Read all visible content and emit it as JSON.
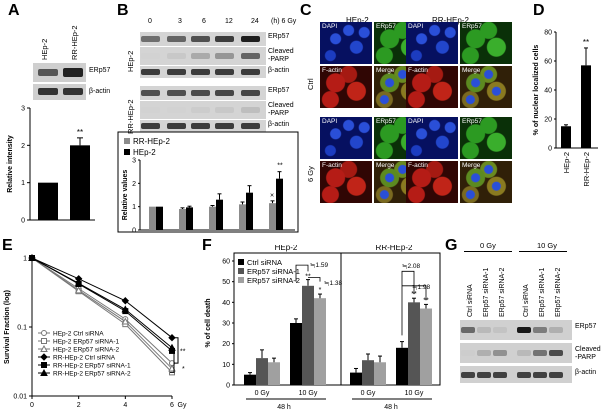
{
  "panels": {
    "A": "A",
    "B": "B",
    "C": "C",
    "D": "D",
    "E": "E",
    "F": "F",
    "G": "G"
  },
  "A": {
    "lanes": [
      "HEp-2",
      "RR-HEp-2"
    ],
    "blot_labels": [
      "ERp57",
      "β-actin"
    ],
    "chart_data": {
      "type": "bar",
      "categories": [
        "HEp-2",
        "RR-HEp-2"
      ],
      "values": [
        1.0,
        2.0
      ],
      "errors": [
        0,
        0.2
      ],
      "ylabel": "Relative intensity",
      "ylim": [
        0,
        3
      ],
      "yticks": [
        0,
        1,
        2,
        3
      ],
      "significance": [
        "",
        "**"
      ]
    }
  },
  "B": {
    "timepoints": [
      "0",
      "3",
      "6",
      "12",
      "24"
    ],
    "time_unit": "(h) 6 Gy",
    "cell_labels": [
      "HEp-2",
      "RR-HEp-2"
    ],
    "blot_labels": [
      "ERp57",
      "Cleaved\n-PARP",
      "β-actin",
      "ERp57",
      "Cleaved\n-PARP",
      "β-actin"
    ],
    "chart_data": {
      "type": "bar",
      "categories": [
        "0",
        "3",
        "6",
        "12",
        "24"
      ],
      "series": [
        {
          "name": "RR-HEp-2",
          "values": [
            1.0,
            0.9,
            1.0,
            1.1,
            1.15
          ],
          "errors": [
            0,
            0.05,
            0.05,
            0.1,
            0.1
          ]
        },
        {
          "name": "HEp-2",
          "values": [
            1.0,
            0.97,
            1.3,
            1.6,
            2.2
          ],
          "errors": [
            0,
            0.05,
            0.25,
            0.3,
            0.3
          ]
        }
      ],
      "ylabel": "Relative values",
      "ylim": [
        0,
        3
      ],
      "yticks": [
        0,
        1,
        2,
        3
      ],
      "annotations": [
        "×",
        "**"
      ]
    }
  },
  "C": {
    "col_labels": [
      "HEp-2",
      "RR-HEp-2"
    ],
    "row_labels": [
      "Ctrl",
      "6 Gy"
    ],
    "channels": [
      "DAPI",
      "ERp57",
      "F-actin",
      "Merge"
    ]
  },
  "D": {
    "chart_data": {
      "type": "bar",
      "categories": [
        "HEp-2",
        "RR-HEp-2"
      ],
      "values": [
        15,
        57
      ],
      "errors": [
        1,
        12
      ],
      "ylabel": "% of nuclear localized cells",
      "ylim": [
        0,
        80
      ],
      "yticks": [
        0,
        20,
        40,
        60,
        80
      ],
      "significance": [
        "",
        "**"
      ]
    }
  },
  "E": {
    "chart_data": {
      "type": "line",
      "log_scale": true,
      "x": [
        0,
        2,
        4,
        6
      ],
      "xlabel": "Gy",
      "ylabel": "Survival Fraction (log)",
      "ylim": [
        0.01,
        1
      ],
      "yticks": [
        "0.01",
        "0.1",
        "1"
      ],
      "series": [
        {
          "name": "HEp-2 Ctrl siRNA",
          "values": [
            1,
            0.36,
            0.13,
            0.03
          ]
        },
        {
          "name": "HEp-2 ERp57 siRNA-1",
          "values": [
            1,
            0.33,
            0.11,
            0.022
          ]
        },
        {
          "name": "HEp-2 ERp57 siRNA-2",
          "values": [
            1,
            0.34,
            0.12,
            0.025
          ]
        },
        {
          "name": "RR-HEp-2 Ctrl siRNA",
          "values": [
            1,
            0.5,
            0.24,
            0.07
          ]
        },
        {
          "name": "RR-HEp-2 ERp57 siRNA-1",
          "values": [
            1,
            0.42,
            0.17,
            0.045
          ]
        },
        {
          "name": "RR-HEp-2 ERp57 siRNA-2",
          "values": [
            1,
            0.43,
            0.18,
            0.05
          ]
        }
      ],
      "annotations": [
        "**",
        "*"
      ]
    }
  },
  "F": {
    "group_titles": [
      "HEp-2",
      "RR-HEp-2"
    ],
    "fold_labels": [
      "≒1.59",
      "≒1.38",
      "≒2.08",
      "≒1.98"
    ],
    "time_labels": [
      "48 h",
      "48 h"
    ],
    "chart_data": {
      "type": "bar",
      "categories": [
        "0 Gy",
        "10 Gy",
        "0 Gy",
        "10 Gy"
      ],
      "ylabel": "% of cell death",
      "ylim": [
        0,
        60
      ],
      "yticks": [
        0,
        10,
        20,
        30,
        40,
        50,
        60
      ],
      "series": [
        {
          "name": "Ctrl siRNA",
          "values": [
            5,
            30,
            6,
            18
          ],
          "errors": [
            1,
            2,
            2,
            3
          ]
        },
        {
          "name": "ERp57 siRNA-1",
          "values": [
            13,
            48,
            12,
            40
          ],
          "errors": [
            4,
            3,
            3,
            2
          ]
        },
        {
          "name": "ERp57 siRNA-2",
          "values": [
            11,
            42,
            11,
            37
          ],
          "errors": [
            2,
            2,
            3,
            2
          ]
        }
      ],
      "significance": [
        "**",
        "*",
        "**",
        "**"
      ]
    }
  },
  "G": {
    "dose_labels": [
      "0 Gy",
      "10 Gy"
    ],
    "lanes": [
      "Ctrl siRNA",
      "ERp57 siRNA-1",
      "ERp57 siRNA-2",
      "Ctrl siRNA",
      "ERp57 siRNA-1",
      "ERp57 siRNA-2"
    ],
    "blot_labels": [
      "ERp57",
      "Cleaved\n-PARP",
      "β-actin"
    ]
  }
}
